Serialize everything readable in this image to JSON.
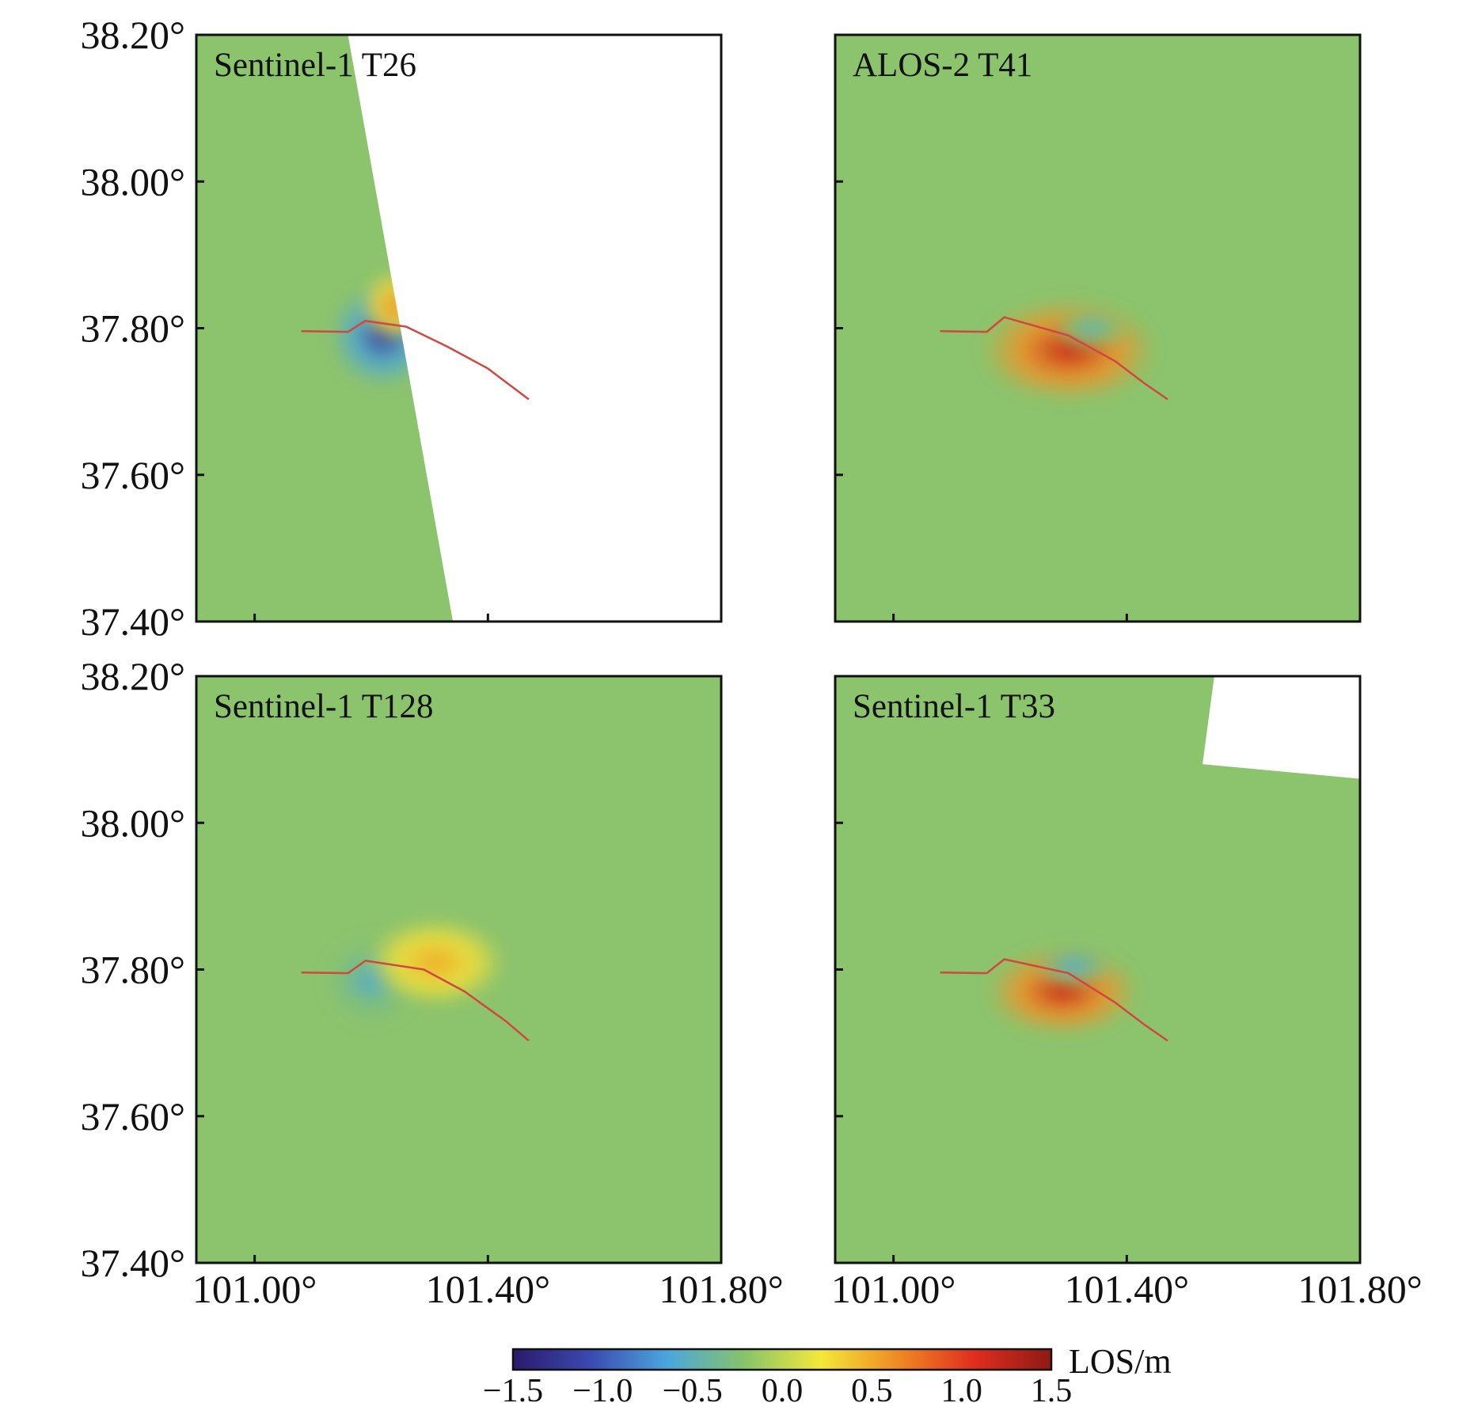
{
  "chart_data": {
    "type": "heatmap",
    "description_units": "LOS displacement (m)",
    "extent": {
      "lon": [
        100.9,
        101.8
      ],
      "lat": [
        37.4,
        38.2
      ]
    },
    "x_ticks": [
      101.0,
      101.4,
      101.8
    ],
    "x_tick_labels": [
      "101.00°",
      "101.40°",
      "101.80°"
    ],
    "y_ticks": [
      38.2,
      38.0,
      37.8,
      37.6,
      37.4
    ],
    "y_tick_labels": [
      "38.20°",
      "38.00°",
      "37.80°",
      "37.60°",
      "37.40°"
    ],
    "panels": [
      {
        "title": "Sentinel-1 T26",
        "fault_trace": [
          [
            101.08,
            37.796
          ],
          [
            101.16,
            37.795
          ],
          [
            101.19,
            37.81
          ],
          [
            101.26,
            37.802
          ],
          [
            101.33,
            37.775
          ],
          [
            101.4,
            37.745
          ],
          [
            101.45,
            37.715
          ],
          [
            101.47,
            37.703
          ]
        ],
        "lobes": [
          {
            "lon": 101.22,
            "lat": 37.79,
            "rlon": 0.09,
            "rlat": 0.07,
            "value": -1.2
          },
          {
            "lon": 101.24,
            "lat": 37.83,
            "rlon": 0.06,
            "rlat": 0.05,
            "value": 0.6
          }
        ],
        "nodata": [
          [
            101.16,
            38.2
          ],
          [
            101.8,
            38.2
          ],
          [
            101.8,
            37.4
          ],
          [
            101.34,
            37.4
          ]
        ]
      },
      {
        "title": "ALOS-2 T41",
        "fault_trace": [
          [
            101.08,
            37.796
          ],
          [
            101.16,
            37.795
          ],
          [
            101.19,
            37.815
          ],
          [
            101.3,
            37.79
          ],
          [
            101.38,
            37.755
          ],
          [
            101.43,
            37.725
          ],
          [
            101.47,
            37.703
          ]
        ],
        "lobes": [
          {
            "lon": 101.3,
            "lat": 37.77,
            "rlon": 0.15,
            "rlat": 0.07,
            "value": 1.2
          },
          {
            "lon": 101.34,
            "lat": 37.8,
            "rlon": 0.07,
            "rlat": 0.03,
            "value": -0.5
          }
        ],
        "nodata": []
      },
      {
        "title": "Sentinel-1 T128",
        "fault_trace": [
          [
            101.08,
            37.796
          ],
          [
            101.16,
            37.795
          ],
          [
            101.19,
            37.812
          ],
          [
            101.29,
            37.8
          ],
          [
            101.36,
            37.77
          ],
          [
            101.43,
            37.73
          ],
          [
            101.47,
            37.703
          ]
        ],
        "lobes": [
          {
            "lon": 101.2,
            "lat": 37.785,
            "rlon": 0.08,
            "rlat": 0.06,
            "value": -0.6
          },
          {
            "lon": 101.31,
            "lat": 37.81,
            "rlon": 0.12,
            "rlat": 0.06,
            "value": 0.5
          }
        ],
        "nodata": []
      },
      {
        "title": "Sentinel-1 T33",
        "fault_trace": [
          [
            101.08,
            37.796
          ],
          [
            101.16,
            37.795
          ],
          [
            101.19,
            37.814
          ],
          [
            101.3,
            37.795
          ],
          [
            101.38,
            37.755
          ],
          [
            101.43,
            37.725
          ],
          [
            101.47,
            37.703
          ]
        ],
        "lobes": [
          {
            "lon": 101.29,
            "lat": 37.77,
            "rlon": 0.13,
            "rlat": 0.06,
            "value": 1.2
          },
          {
            "lon": 101.31,
            "lat": 37.805,
            "rlon": 0.07,
            "rlat": 0.03,
            "value": -0.6
          }
        ],
        "nodata": [
          [
            101.55,
            38.2
          ],
          [
            101.8,
            38.2
          ],
          [
            101.8,
            38.06
          ],
          [
            101.53,
            38.08
          ]
        ]
      }
    ],
    "colorbar": {
      "label": "LOS/m",
      "range": [
        -1.5,
        1.5
      ],
      "ticks": [
        -1.5,
        -1.0,
        -0.5,
        0.0,
        0.5,
        1.0,
        1.5
      ],
      "tick_labels": [
        "−1.5",
        "−1.0",
        "−0.5",
        "0.0",
        "0.5",
        "1.0",
        "1.5"
      ],
      "colors": [
        "#2b1a6b",
        "#3b49b0",
        "#4aa6dd",
        "#86c36b",
        "#f4e93a",
        "#f08a24",
        "#e02d1f",
        "#8e1a14"
      ]
    },
    "background_color": "#8cc36d",
    "fault_color": "#d2473f",
    "frame_color": "#111111"
  }
}
